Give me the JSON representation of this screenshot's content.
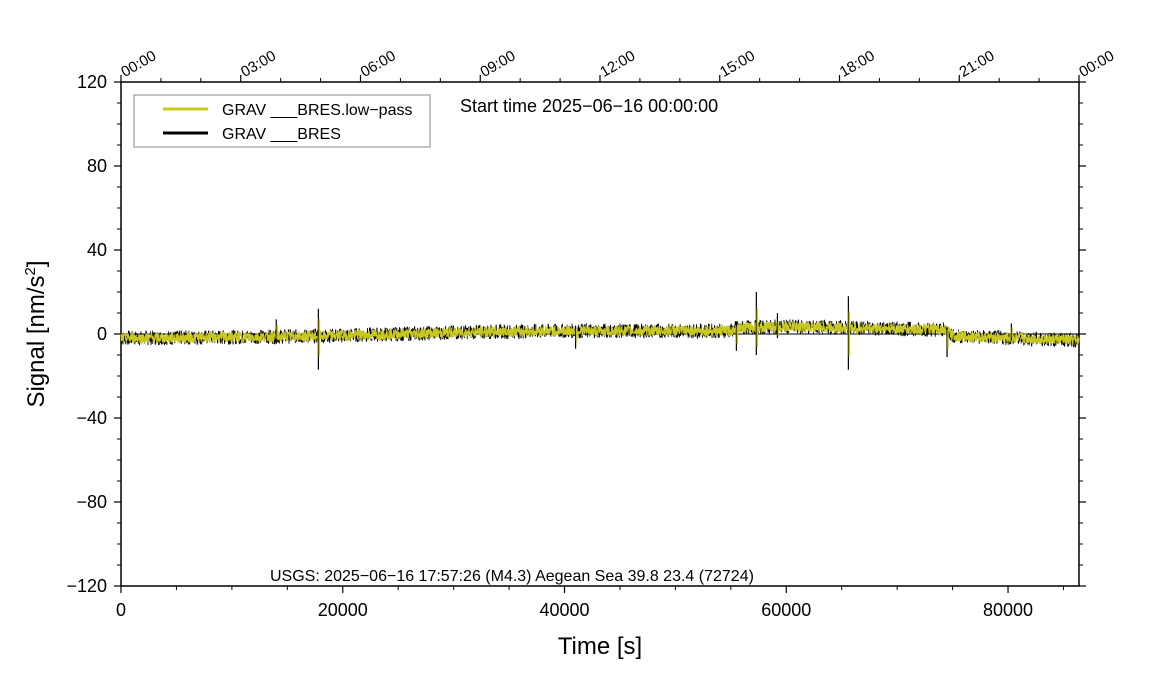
{
  "chart_data": {
    "type": "line",
    "xlabel": "Time [s]",
    "ylabel_main": "Signal [nm/s",
    "ylabel_sup": "2",
    "ylabel_end": "]",
    "xlim": [
      0,
      86400
    ],
    "ylim": [
      -120,
      120
    ],
    "x_ticks": [
      0,
      20000,
      40000,
      60000,
      80000
    ],
    "x_tick_labels": [
      "0",
      "20000",
      "40000",
      "60000",
      "80000"
    ],
    "y_ticks": [
      120,
      80,
      40,
      0,
      -40,
      -80,
      -120
    ],
    "y_tick_labels": [
      "120",
      "80",
      "40",
      "0",
      "−40",
      "−80",
      "−120"
    ],
    "top_axis": {
      "ticks_seconds": [
        0,
        10800,
        21600,
        32400,
        43200,
        54000,
        64800,
        75600,
        86400
      ],
      "labels": [
        "00:00",
        "03:00",
        "06:00",
        "09:00",
        "12:00",
        "15:00",
        "18:00",
        "21:00",
        "00:00"
      ]
    },
    "annotation_top": "Start time 2025−06−16 00:00:00",
    "annotation_bottom": "USGS: 2025−06−16 17:57:26 (M4.3) Aegean Sea 39.8 23.4 (72724)",
    "legend_position": "top-left",
    "grid": false,
    "series": [
      {
        "name": "GRAV ___BRES.low−pass",
        "color": "#c8c81e",
        "baseline_x": [
          0,
          10000,
          17500,
          25000,
          32000,
          40000,
          48000,
          55000,
          55500,
          60000,
          65000,
          70000,
          74500,
          75000,
          86400
        ],
        "baseline_y": [
          -2,
          -1.5,
          -1,
          0,
          1,
          1.5,
          1.5,
          1.5,
          3,
          3.5,
          3,
          2.5,
          2,
          -1,
          -3
        ],
        "noise_amplitude": 2.5
      },
      {
        "name": "GRAV ___BRES",
        "color": "#000000",
        "baseline_x": [
          0,
          10000,
          17500,
          25000,
          32000,
          40000,
          48000,
          55000,
          55500,
          60000,
          65000,
          70000,
          74500,
          75000,
          86400
        ],
        "baseline_y": [
          -2,
          -1.5,
          -1,
          0,
          1,
          1.5,
          1.5,
          1.5,
          3,
          3.5,
          3,
          2.5,
          2,
          -1,
          -3
        ],
        "noise_amplitude": 3.5
      }
    ],
    "spikes": [
      {
        "x": 14000,
        "y_max": 7,
        "y_min": -4
      },
      {
        "x": 17800,
        "y_max": 12,
        "y_min": -17
      },
      {
        "x": 41000,
        "y_max": 4,
        "y_min": -7
      },
      {
        "x": 55500,
        "y_max": 6,
        "y_min": -8
      },
      {
        "x": 57300,
        "y_max": 20,
        "y_min": -10
      },
      {
        "x": 59200,
        "y_max": 10,
        "y_min": -2
      },
      {
        "x": 65600,
        "y_max": 18,
        "y_min": -17
      },
      {
        "x": 74500,
        "y_max": 3,
        "y_min": -11
      },
      {
        "x": 80300,
        "y_max": 5,
        "y_min": -3
      }
    ]
  }
}
